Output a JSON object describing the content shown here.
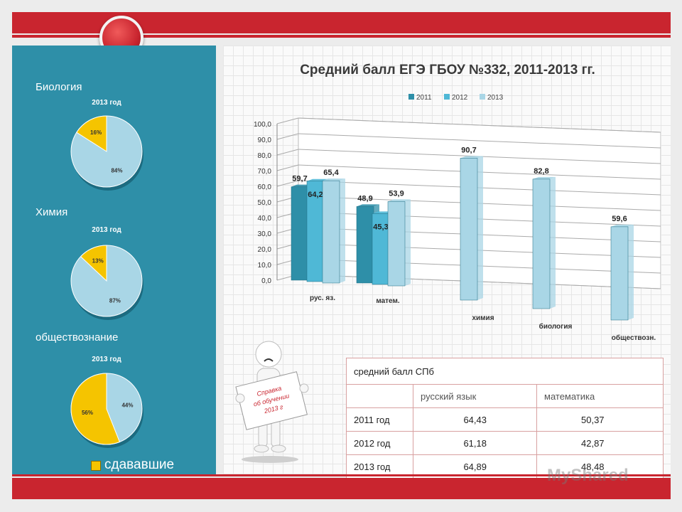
{
  "sidebar": {
    "subjects": [
      {
        "label": "Биология",
        "pie_title": "2013 год",
        "slice_label": "16%",
        "rest_label": "84%",
        "share": 0.16
      },
      {
        "label": "Химия",
        "pie_title": "2013 год",
        "slice_label": "13%",
        "rest_label": "87%",
        "share": 0.13
      },
      {
        "label": "обществознание",
        "pie_title": "2013 год",
        "slice_label": "56%",
        "rest_label": "44%",
        "share": 0.56
      }
    ],
    "legend_label": "сдававшие"
  },
  "colors": {
    "s2011": "#2e8fa8",
    "s2012": "#4fb8d6",
    "s2013": "#a9d6e6",
    "pie_share": "#f5c400",
    "pie_rest": "#a9d6e6",
    "frame": "#c9252f"
  },
  "chart_data": {
    "type": "bar",
    "title": "Средний балл ЕГЭ ГБОУ №332, 2011-2013 гг.",
    "categories": [
      "рус. яз.",
      "матем.",
      "химия",
      "биология",
      "обществозн."
    ],
    "series": [
      {
        "name": "2011",
        "values": [
          59.7,
          48.9,
          null,
          null,
          null
        ]
      },
      {
        "name": "2012",
        "values": [
          64.2,
          45.3,
          null,
          null,
          null
        ]
      },
      {
        "name": "2013",
        "values": [
          65.4,
          53.9,
          90.7,
          82.8,
          59.6
        ]
      }
    ],
    "value_labels": [
      [
        "59,7",
        "48,9",
        null,
        null,
        null
      ],
      [
        "64,2",
        "45,3",
        null,
        null,
        null
      ],
      [
        "65,4",
        "53,9",
        "90,7",
        "82,8",
        "59,6"
      ]
    ],
    "ylim": [
      0,
      100
    ],
    "yticks": [
      "0,0",
      "10,0",
      "20,0",
      "30,0",
      "40,0",
      "50,0",
      "60,0",
      "70,0",
      "80,0",
      "90,0",
      "100,0"
    ],
    "legend_position": "top",
    "grid": true
  },
  "sign": {
    "line1": "Справка",
    "line2": "об обучении",
    "line3": "2013 г"
  },
  "table": {
    "caption": "средний балл СПб",
    "headers": [
      "",
      "русский язык",
      "математика"
    ],
    "rows": [
      [
        "2011 год",
        "64,43",
        "50,37"
      ],
      [
        "2012 год",
        "61,18",
        "42,87"
      ],
      [
        "2013 год",
        "64,89",
        "48,48"
      ]
    ]
  },
  "watermark": "MyShared"
}
